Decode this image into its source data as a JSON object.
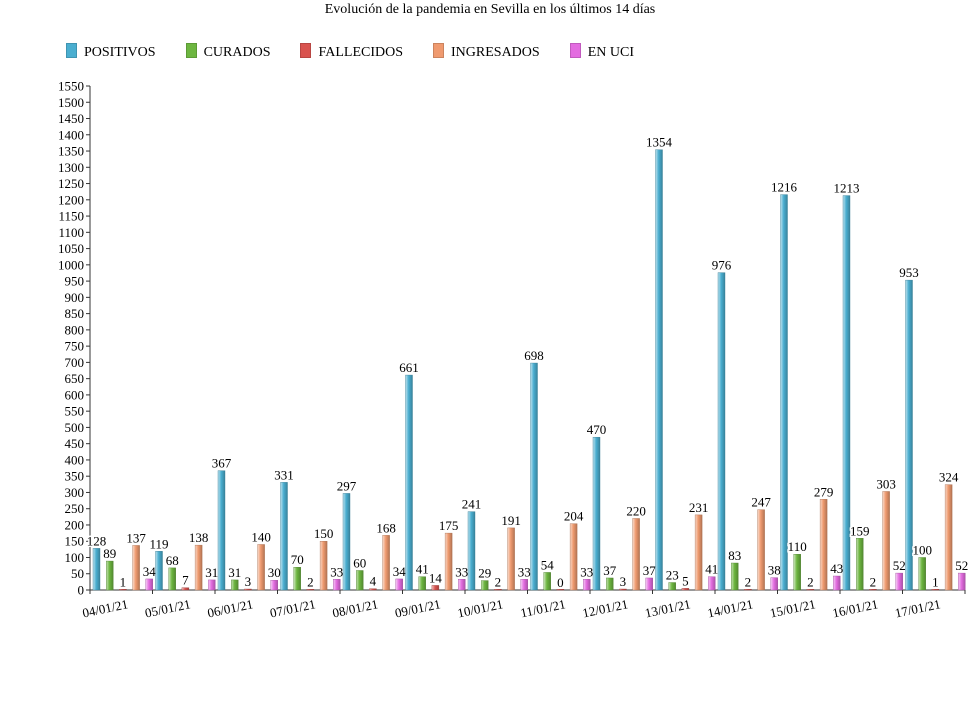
{
  "chart_data": {
    "type": "bar",
    "title": "Evolución de la pandemia en Sevilla en los últimos 14 días",
    "xlabel": "",
    "ylabel": "",
    "ylim": [
      0,
      1550
    ],
    "ytick_step": 50,
    "grid": false,
    "legend_position": "top-left",
    "categories": [
      "04/01/21",
      "05/01/21",
      "06/01/21",
      "07/01/21",
      "08/01/21",
      "09/01/21",
      "10/01/21",
      "11/01/21",
      "12/01/21",
      "13/01/21",
      "14/01/21",
      "15/01/21",
      "16/01/21",
      "17/01/21"
    ],
    "series": [
      {
        "name": "POSITIVOS",
        "color": "#4aaed0",
        "values": [
          128,
          119,
          367,
          331,
          297,
          661,
          241,
          698,
          470,
          1354,
          976,
          1216,
          1213,
          953
        ]
      },
      {
        "name": "CURADOS",
        "color": "#6db640",
        "values": [
          89,
          68,
          31,
          70,
          60,
          41,
          29,
          54,
          37,
          23,
          83,
          110,
          159,
          100
        ]
      },
      {
        "name": "FALLECIDOS",
        "color": "#d9534f",
        "values": [
          1,
          7,
          3,
          2,
          4,
          14,
          2,
          0,
          3,
          5,
          2,
          2,
          2,
          1
        ]
      },
      {
        "name": "INGRESADOS",
        "color": "#ef9a6f",
        "values": [
          137,
          138,
          140,
          150,
          168,
          175,
          191,
          204,
          220,
          231,
          247,
          279,
          303,
          324
        ]
      },
      {
        "name": "EN UCI",
        "color": "#e36ce0",
        "values": [
          34,
          31,
          30,
          33,
          34,
          33,
          33,
          33,
          37,
          41,
          38,
          43,
          52,
          52
        ]
      }
    ]
  }
}
